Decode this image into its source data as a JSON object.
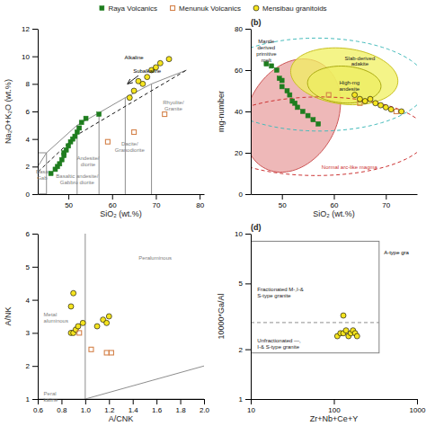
{
  "chart_data": [
    {
      "type": "scatter",
      "xlabel": "SiO₂ (wt.%)",
      "ylabel": "Na₂O+K₂O (wt.%)",
      "xlim": [
        43,
        81
      ],
      "ylim": [
        0,
        12
      ],
      "xticks": [
        50,
        60,
        70,
        80
      ],
      "yticks": [
        0,
        2,
        4,
        6,
        8,
        10,
        12
      ],
      "grid": false,
      "legend": "top",
      "series": [
        {
          "name": "Raya Volcanics",
          "color": "#1e7d1e",
          "marker": "square",
          "x": [
            46,
            47,
            47.5,
            48,
            48.5,
            49,
            49,
            49.5,
            50,
            50.5,
            51,
            51.5,
            52,
            52.5,
            53,
            54,
            57
          ],
          "values": [
            1.5,
            1.8,
            2.0,
            2.2,
            2.5,
            2.8,
            3.0,
            3.2,
            3.5,
            3.8,
            4.0,
            4.2,
            4.5,
            4.8,
            5.2,
            5.5,
            5.8
          ]
        },
        {
          "name": "Menunuk Volcanics",
          "color": "#d4824a",
          "marker": "square-open",
          "x": [
            59,
            65,
            72
          ],
          "values": [
            3.8,
            4.5,
            5.8
          ]
        },
        {
          "name": "Mensibau granitoids",
          "color": "#f5e420",
          "marker": "circle",
          "x": [
            64,
            65,
            66,
            67,
            68,
            69,
            70,
            71,
            73
          ],
          "values": [
            7.0,
            7.5,
            8.2,
            8.0,
            8.5,
            9.0,
            9.2,
            9.5,
            9.8
          ]
        }
      ],
      "lines": [
        {
          "x": [
            41,
            45
          ],
          "y": [
            1,
            3
          ],
          "color": "gray"
        },
        {
          "x": [
            45,
            52
          ],
          "y": [
            3,
            5
          ],
          "color": "gray"
        },
        {
          "x": [
            52,
            57
          ],
          "y": [
            5,
            5.9
          ],
          "color": "gray"
        },
        {
          "x": [
            57,
            63
          ],
          "y": [
            5.9,
            7.0
          ],
          "color": "gray"
        },
        {
          "x": [
            63,
            69
          ],
          "y": [
            7.0,
            8.0
          ],
          "color": "gray"
        },
        {
          "x": [
            69,
            77
          ],
          "y": [
            8.0,
            9.0
          ],
          "color": "gray"
        },
        {
          "x": [
            45,
            45
          ],
          "y": [
            0,
            3
          ],
          "color": "gray"
        },
        {
          "x": [
            52,
            52
          ],
          "y": [
            0,
            5
          ],
          "color": "gray"
        },
        {
          "x": [
            57,
            57
          ],
          "y": [
            0,
            5.9
          ],
          "color": "gray"
        },
        {
          "x": [
            63,
            63
          ],
          "y": [
            0,
            7.0
          ],
          "color": "gray"
        },
        {
          "x": [
            69,
            69
          ],
          "y": [
            0,
            8.0
          ],
          "color": "gray"
        },
        {
          "x": [
            41,
            45
          ],
          "y": [
            0,
            0
          ],
          "color": "gray"
        },
        {
          "x": [
            41,
            41
          ],
          "y": [
            0,
            3
          ],
          "color": "gray"
        },
        {
          "x": [
            41,
            45
          ],
          "y": [
            3,
            3
          ],
          "color": "gray"
        },
        {
          "x": [
            41,
            45
          ],
          "y": [
            0,
            0
          ],
          "color": "gray"
        },
        {
          "x": [
            41,
            52,
            69,
            77
          ],
          "y": [
            1.0,
            4.3,
            7.5,
            9.0
          ],
          "color": "black",
          "line_style": "dashed"
        }
      ],
      "arrows": [
        {
          "x": [
            66,
            63.5
          ],
          "y": [
            8.6,
            8.0
          ],
          "color": "black"
        }
      ],
      "annotations": [
        {
          "text": "Basaltic andesite/\nGabbro diorite",
          "x": 52,
          "y": 1.2,
          "color": "gray",
          "align": "center"
        },
        {
          "text": "Basa\nGab",
          "x": 44,
          "y": 1.5,
          "color": "gray",
          "align": "center"
        },
        {
          "text": "Andesite/\ndiorite",
          "x": 54.5,
          "y": 2.5,
          "color": "gray",
          "align": "center"
        },
        {
          "text": "Dacite/\nGranodiorite",
          "x": 64,
          "y": 3.5,
          "color": "gray",
          "align": "center"
        },
        {
          "text": "Rhyolite/\nGranite",
          "x": 74,
          "y": 6.5,
          "color": "gray",
          "align": "center"
        },
        {
          "text": "Alkaline",
          "x": 65,
          "y": 9.8,
          "color": "black",
          "align": "center"
        },
        {
          "text": "Subalkaline",
          "x": 68,
          "y": 8.8,
          "color": "black",
          "align": "center"
        }
      ]
    },
    {
      "type": "scatter",
      "title": "(b)",
      "xlabel": "SiO₂ (wt.%)",
      "ylabel": "mg-number",
      "xlim": [
        44,
        76
      ],
      "ylim": [
        0,
        80
      ],
      "xticks": [
        50,
        60,
        70
      ],
      "yticks": [
        0,
        20,
        40,
        60,
        80
      ],
      "grid": false,
      "series": [
        {
          "color": "#1e7d1e",
          "marker": "square",
          "x": [
            47,
            48,
            49,
            49.5,
            50,
            50,
            51,
            51.5,
            52,
            52.5,
            53,
            54,
            55,
            56,
            57
          ],
          "values": [
            63,
            62,
            60,
            56,
            55,
            52,
            50,
            48,
            45,
            44,
            42,
            40,
            38,
            36,
            34
          ]
        },
        {
          "color": "#d4824a",
          "marker": "square-open",
          "x": [
            59,
            65,
            72
          ],
          "values": [
            48,
            44,
            40
          ]
        },
        {
          "color": "#f5e420",
          "marker": "circle",
          "x": [
            64,
            65,
            66,
            67,
            68,
            69,
            70,
            71,
            73
          ],
          "values": [
            48,
            46,
            45,
            46,
            44,
            43,
            42,
            41,
            40
          ]
        }
      ],
      "ellipses": [
        {
          "x": 52,
          "y": 38,
          "width": 18,
          "height": 55,
          "angle": -5,
          "fill": "#e8a0a0",
          "color": "#cc5555"
        },
        {
          "x": 62,
          "y": 57,
          "width": 20,
          "height": 28,
          "angle": 15,
          "fill": "#f0f060",
          "color": "#c8c020"
        },
        {
          "x": 62,
          "y": 53,
          "width": 14,
          "height": 18,
          "angle": 10,
          "fill": "#eeee60",
          "color": "#aaaa10"
        },
        {
          "x": 57,
          "y": 28,
          "width": 42,
          "height": 38,
          "angle": 5,
          "color": "#cc3333",
          "line_style": "dashed"
        },
        {
          "x": 57,
          "y": 53,
          "width": 42,
          "height": 45,
          "angle": 5,
          "color": "#44bbbb",
          "line_style": "dashed"
        }
      ],
      "annotations": [
        {
          "text": "Mantle\nderived\nprimitive\nmelt",
          "x": 47,
          "y": 73,
          "align": "center"
        },
        {
          "text": "Slab-derived\nadakite",
          "x": 65,
          "y": 65,
          "align": "center"
        },
        {
          "text": "High-mg\nandesite",
          "x": 63,
          "y": 53,
          "align": "center"
        },
        {
          "text": "Normal arc-like magma",
          "x": 63,
          "y": 12,
          "color": "#cc3333",
          "align": "center"
        }
      ]
    },
    {
      "type": "scatter",
      "xlabel": "A/CNK",
      "ylabel": "A/NK",
      "xlim": [
        0.6,
        2.0
      ],
      "ylim": [
        1.0,
        6.0
      ],
      "xticks": [
        0.6,
        0.8,
        {
          "value": 1,
          "label": "1.0"
        },
        1.2,
        1.4,
        1.6,
        1.8,
        {
          "value": 2,
          "label": "2.0"
        }
      ],
      "yticks": [
        1,
        2,
        3,
        4,
        5,
        6
      ],
      "grid": false,
      "series": [
        {
          "color": "#f5e420",
          "marker": "circle",
          "x": [
            0.88,
            0.9,
            0.88,
            0.9,
            0.92,
            0.94,
            0.98,
            1.1,
            1.15,
            1.18,
            1.2
          ],
          "values": [
            3.8,
            4.2,
            3.0,
            3.0,
            3.1,
            3.2,
            3.3,
            3.2,
            3.4,
            3.3,
            3.5
          ]
        },
        {
          "color": "#d4824a",
          "marker": "square-open",
          "x": [
            0.95,
            1.05,
            1.18,
            1.22
          ],
          "values": [
            3.0,
            2.5,
            2.4,
            2.4
          ]
        }
      ],
      "lines": [
        {
          "x": [
            1.0,
            1.0
          ],
          "y": [
            1.0,
            6.0
          ],
          "color": "gray"
        },
        {
          "x": [
            0.6,
            2.0
          ],
          "y": [
            1.0,
            1.0
          ],
          "color": "gray"
        },
        {
          "x": [
            0.6,
            2.0
          ],
          "y": [
            0.6,
            2.0
          ],
          "color": "gray"
        }
      ],
      "annotations": [
        {
          "text": "Peraluminous",
          "x": 1.45,
          "y": 5.2,
          "color": "gray",
          "align": "left"
        },
        {
          "text": "Metal\naluminous",
          "x": 0.65,
          "y": 3.5,
          "color": "gray",
          "align": "left"
        },
        {
          "text": "Peral\nkaline",
          "x": 0.65,
          "y": 1.1,
          "color": "gray",
          "align": "left"
        }
      ]
    },
    {
      "type": "scatter",
      "title": "(d)",
      "log": true,
      "xlabel": "Zr+Nb+Ce+Y",
      "ylabel": "10000*Ga/Al",
      "xlim": [
        10,
        1000
      ],
      "ylim": [
        1,
        10
      ],
      "xticks": [
        10,
        100,
        1000
      ],
      "yticks": [
        1,
        2,
        5,
        10
      ],
      "grid": false,
      "series": [
        {
          "color": "#f5e420",
          "marker": "circle",
          "x": [
            130,
            110,
            120,
            130,
            140,
            150,
            160,
            170,
            180,
            190
          ],
          "values": [
            3.2,
            2.4,
            2.5,
            2.5,
            2.6,
            2.4,
            2.5,
            2.6,
            2.5,
            2.4
          ]
        }
      ],
      "box": {
        "x": [
          10,
          350
        ],
        "y": [
          1.9,
          9.0
        ],
        "color": "gray"
      },
      "lines": [
        {
          "x": [
            10,
            350
          ],
          "y": [
            2.9,
            2.9
          ],
          "color": "gray",
          "line_style": "dashed"
        }
      ],
      "annotations": [
        {
          "text": "Fractionated M-,I-&\nS-type granite",
          "x": 12,
          "y": 4.5,
          "align": "left"
        },
        {
          "text": "Unfractionated —,\nI-& S-type granite",
          "x": 12,
          "y": 2.2,
          "align": "left"
        },
        {
          "text": "A-type gra",
          "x": 400,
          "y": 7.5,
          "color": "black",
          "align": "left"
        }
      ]
    }
  ]
}
